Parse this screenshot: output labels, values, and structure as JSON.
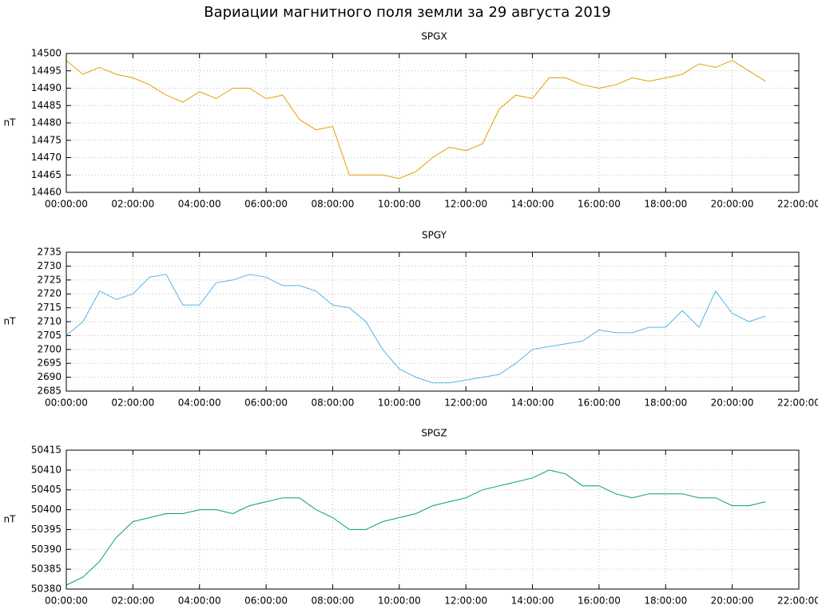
{
  "title": "Вариации магнитного поля земли за 29 августа 2019",
  "chart_data": [
    {
      "type": "line",
      "title": "SPGX",
      "y_label": "nT",
      "grid": true,
      "x": [
        0,
        0.5,
        1,
        1.5,
        2,
        2.5,
        3,
        3.5,
        4,
        4.5,
        5,
        5.5,
        6,
        6.5,
        7,
        7.5,
        8,
        8.5,
        9,
        9.5,
        10,
        10.5,
        11,
        11.5,
        12,
        12.5,
        13,
        13.5,
        14,
        14.5,
        15,
        15.5,
        16,
        16.5,
        17,
        17.5,
        18,
        18.5,
        19,
        19.5,
        20,
        20.5,
        21
      ],
      "series": [
        {
          "name": "SPGX",
          "color": "#e69f00",
          "values": [
            14498,
            14494,
            14496,
            14494,
            14493,
            14491,
            14488,
            14486,
            14489,
            14487,
            14490,
            14490,
            14487,
            14488,
            14481,
            14478,
            14479,
            14465,
            14465,
            14465,
            14464,
            14466,
            14470,
            14473,
            14472,
            14474,
            14484,
            14488,
            14487,
            14493,
            14493,
            14491,
            14490,
            14491,
            14493,
            14492,
            14493,
            14494,
            14497,
            14496,
            14498,
            14495,
            14492
          ]
        }
      ],
      "xlim": [
        0,
        22
      ],
      "xticks": [
        {
          "value": 0,
          "label": "00:00:00"
        },
        {
          "value": 2,
          "label": "02:00:00"
        },
        {
          "value": 4,
          "label": "04:00:00"
        },
        {
          "value": 6,
          "label": "06:00:00"
        },
        {
          "value": 8,
          "label": "08:00:00"
        },
        {
          "value": 10,
          "label": "10:00:00"
        },
        {
          "value": 12,
          "label": "12:00:00"
        },
        {
          "value": 14,
          "label": "14:00:00"
        },
        {
          "value": 16,
          "label": "16:00:00"
        },
        {
          "value": 18,
          "label": "18:00:00"
        },
        {
          "value": 20,
          "label": "20:00:00"
        },
        {
          "value": 22,
          "label": "22:00:00"
        }
      ],
      "ylim": [
        14460,
        14500
      ],
      "yticks": [
        14460,
        14465,
        14470,
        14475,
        14480,
        14485,
        14490,
        14495,
        14500
      ]
    },
    {
      "type": "line",
      "title": "SPGY",
      "y_label": "nT",
      "grid": true,
      "x": [
        0,
        0.5,
        1,
        1.5,
        2,
        2.5,
        3,
        3.5,
        4,
        4.5,
        5,
        5.5,
        6,
        6.5,
        7,
        7.5,
        8,
        8.5,
        9,
        9.5,
        10,
        10.5,
        11,
        11.5,
        12,
        12.5,
        13,
        13.5,
        14,
        14.5,
        15,
        15.5,
        16,
        16.5,
        17,
        17.5,
        18,
        18.5,
        19,
        19.5,
        20,
        20.5,
        21
      ],
      "series": [
        {
          "name": "SPGY",
          "color": "#56b4e9",
          "values": [
            2705,
            2710,
            2721,
            2718,
            2720,
            2726,
            2727,
            2716,
            2716,
            2724,
            2725,
            2727,
            2726,
            2723,
            2723,
            2721,
            2716,
            2715,
            2710,
            2700,
            2693,
            2690,
            2688,
            2688,
            2689,
            2690,
            2691,
            2695,
            2700,
            2701,
            2702,
            2703,
            2707,
            2706,
            2706,
            2708,
            2708,
            2714,
            2708,
            2721,
            2713,
            2710,
            2712
          ]
        }
      ],
      "xlim": [
        0,
        22
      ],
      "xticks": [
        {
          "value": 0,
          "label": "00:00:00"
        },
        {
          "value": 2,
          "label": "02:00:00"
        },
        {
          "value": 4,
          "label": "04:00:00"
        },
        {
          "value": 6,
          "label": "06:00:00"
        },
        {
          "value": 8,
          "label": "08:00:00"
        },
        {
          "value": 10,
          "label": "10:00:00"
        },
        {
          "value": 12,
          "label": "12:00:00"
        },
        {
          "value": 14,
          "label": "14:00:00"
        },
        {
          "value": 16,
          "label": "16:00:00"
        },
        {
          "value": 18,
          "label": "18:00:00"
        },
        {
          "value": 20,
          "label": "20:00:00"
        },
        {
          "value": 22,
          "label": "22:00:00"
        }
      ],
      "ylim": [
        2685,
        2735
      ],
      "yticks": [
        2685,
        2690,
        2695,
        2700,
        2705,
        2710,
        2715,
        2720,
        2725,
        2730,
        2735
      ]
    },
    {
      "type": "line",
      "title": "SPGZ",
      "y_label": "nT",
      "grid": true,
      "x": [
        0,
        0.5,
        1,
        1.5,
        2,
        2.5,
        3,
        3.5,
        4,
        4.5,
        5,
        5.5,
        6,
        6.5,
        7,
        7.5,
        8,
        8.5,
        9,
        9.5,
        10,
        10.5,
        11,
        11.5,
        12,
        12.5,
        13,
        13.5,
        14,
        14.5,
        15,
        15.5,
        16,
        16.5,
        17,
        17.5,
        18,
        18.5,
        19,
        19.5,
        20,
        20.5,
        21
      ],
      "series": [
        {
          "name": "SPGZ",
          "color": "#009e73",
          "values": [
            50381,
            50383,
            50387,
            50393,
            50397,
            50398,
            50399,
            50399,
            50400,
            50400,
            50399,
            50401,
            50402,
            50403,
            50403,
            50400,
            50398,
            50395,
            50395,
            50397,
            50398,
            50399,
            50401,
            50402,
            50403,
            50405,
            50406,
            50407,
            50408,
            50410,
            50409,
            50406,
            50406,
            50404,
            50403,
            50404,
            50404,
            50404,
            50403,
            50403,
            50401,
            50401,
            50402
          ]
        }
      ],
      "xlim": [
        0,
        22
      ],
      "xticks": [
        {
          "value": 0,
          "label": "00:00:00"
        },
        {
          "value": 2,
          "label": "02:00:00"
        },
        {
          "value": 4,
          "label": "04:00:00"
        },
        {
          "value": 6,
          "label": "06:00:00"
        },
        {
          "value": 8,
          "label": "08:00:00"
        },
        {
          "value": 10,
          "label": "10:00:00"
        },
        {
          "value": 12,
          "label": "12:00:00"
        },
        {
          "value": 14,
          "label": "14:00:00"
        },
        {
          "value": 16,
          "label": "16:00:00"
        },
        {
          "value": 18,
          "label": "18:00:00"
        },
        {
          "value": 20,
          "label": "20:00:00"
        },
        {
          "value": 22,
          "label": "22:00:00"
        }
      ],
      "ylim": [
        50380,
        50415
      ],
      "yticks": [
        50380,
        50385,
        50390,
        50395,
        50400,
        50405,
        50410,
        50415
      ]
    }
  ]
}
